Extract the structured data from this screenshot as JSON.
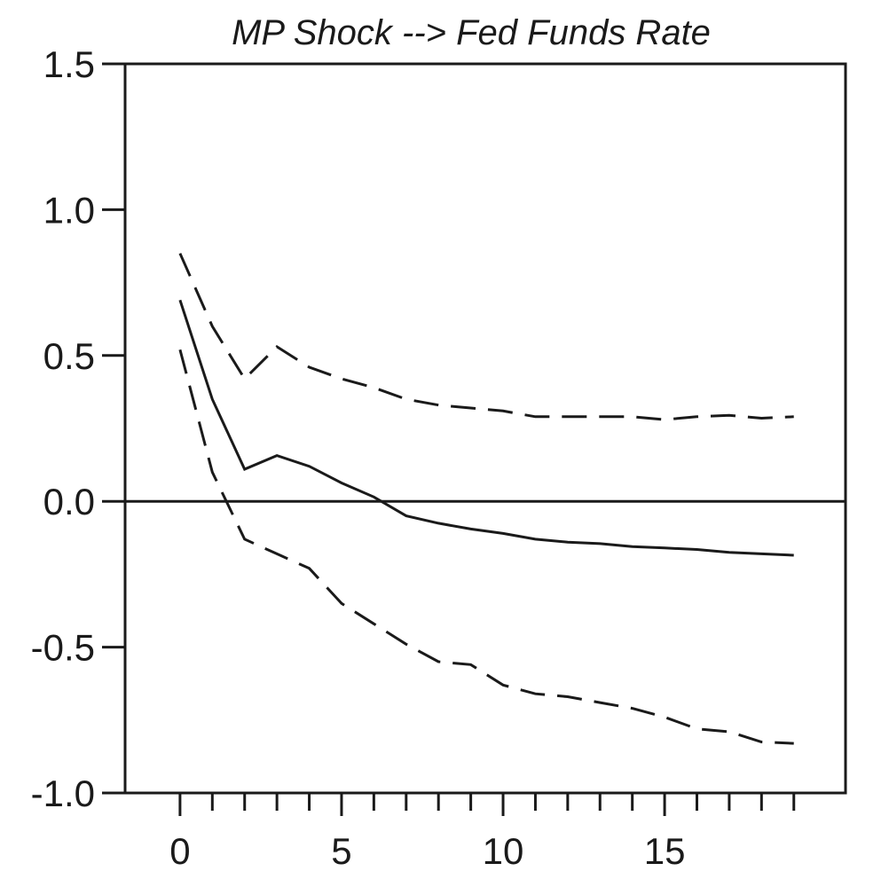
{
  "chart_data": {
    "type": "line",
    "title": "MP Shock --> Fed Funds Rate",
    "xlabel": "",
    "ylabel": "",
    "xlim": [
      -1.7,
      20.6
    ],
    "ylim": [
      -1.0,
      1.5
    ],
    "x_ticks": [
      0,
      5,
      10,
      15
    ],
    "x_minor_ticks": [
      0,
      1,
      2,
      3,
      4,
      5,
      6,
      7,
      8,
      9,
      10,
      11,
      12,
      13,
      14,
      15,
      16,
      17,
      18,
      19
    ],
    "y_ticks": [
      -1.0,
      -0.5,
      0.0,
      0.5,
      1.0,
      1.5
    ],
    "x_tick_labels": [
      "0",
      "5",
      "10",
      "15"
    ],
    "y_tick_labels": [
      "-1.0",
      "-0.5",
      "0.0",
      "0.5",
      "1.0",
      "1.5"
    ],
    "reference_line": 0.0,
    "grid": false,
    "legend": "none",
    "x": [
      0,
      1,
      2,
      3,
      4,
      5,
      6,
      7,
      8,
      9,
      10,
      11,
      12,
      13,
      14,
      15,
      16,
      17,
      18,
      19
    ],
    "series": [
      {
        "style": "solid",
        "color": "#1a1a1a",
        "values": [
          0.69,
          0.35,
          0.11,
          0.157,
          0.12,
          0.063,
          0.015,
          -0.05,
          -0.075,
          -0.095,
          -0.11,
          -0.13,
          -0.14,
          -0.145,
          -0.155,
          -0.16,
          -0.165,
          -0.175,
          -0.18,
          -0.185
        ]
      },
      {
        "style": "dashed",
        "color": "#1a1a1a",
        "values": [
          0.85,
          0.6,
          0.42,
          0.53,
          0.46,
          0.42,
          0.39,
          0.35,
          0.33,
          0.32,
          0.31,
          0.29,
          0.29,
          0.29,
          0.29,
          0.28,
          0.29,
          0.295,
          0.285,
          0.29
        ]
      },
      {
        "style": "dashed",
        "color": "#1a1a1a",
        "values": [
          0.52,
          0.1,
          -0.13,
          -0.18,
          -0.23,
          -0.35,
          -0.42,
          -0.49,
          -0.55,
          -0.56,
          -0.63,
          -0.66,
          -0.67,
          -0.69,
          -0.71,
          -0.74,
          -0.78,
          -0.79,
          -0.825,
          -0.83
        ]
      }
    ]
  }
}
